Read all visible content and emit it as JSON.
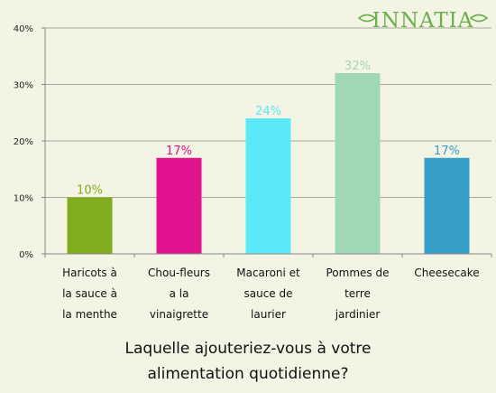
{
  "logo": {
    "text": "INNATIA",
    "color": "#6ab04c",
    "icon": "leaf-icon"
  },
  "question": {
    "line1": "Laquelle ajouteriez-vous à votre",
    "line2": "alimentation quotidienne?"
  },
  "chart_data": {
    "type": "bar",
    "title": "",
    "xlabel": "",
    "ylabel": "",
    "ylim": [
      0,
      40
    ],
    "y_ticks": [
      "0%",
      "10%",
      "20%",
      "30%",
      "40%"
    ],
    "grid": true,
    "categories": [
      [
        "Haricots à",
        "la sauce à",
        "la menthe"
      ],
      [
        "Chou-fleurs",
        "a la",
        "vinaigrette"
      ],
      [
        "Macaroni et",
        "sauce de",
        "laurier"
      ],
      [
        "Pommes de",
        "terre",
        "jardinier"
      ],
      [
        "Cheesecake"
      ]
    ],
    "values": [
      10,
      17,
      24,
      32,
      17
    ],
    "value_labels": [
      "10%",
      "17%",
      "24%",
      "32%",
      "17%"
    ],
    "colors": [
      "#80ac1e",
      "#e2138e",
      "#5be8f8",
      "#a0d8b4",
      "#379ec8"
    ]
  }
}
